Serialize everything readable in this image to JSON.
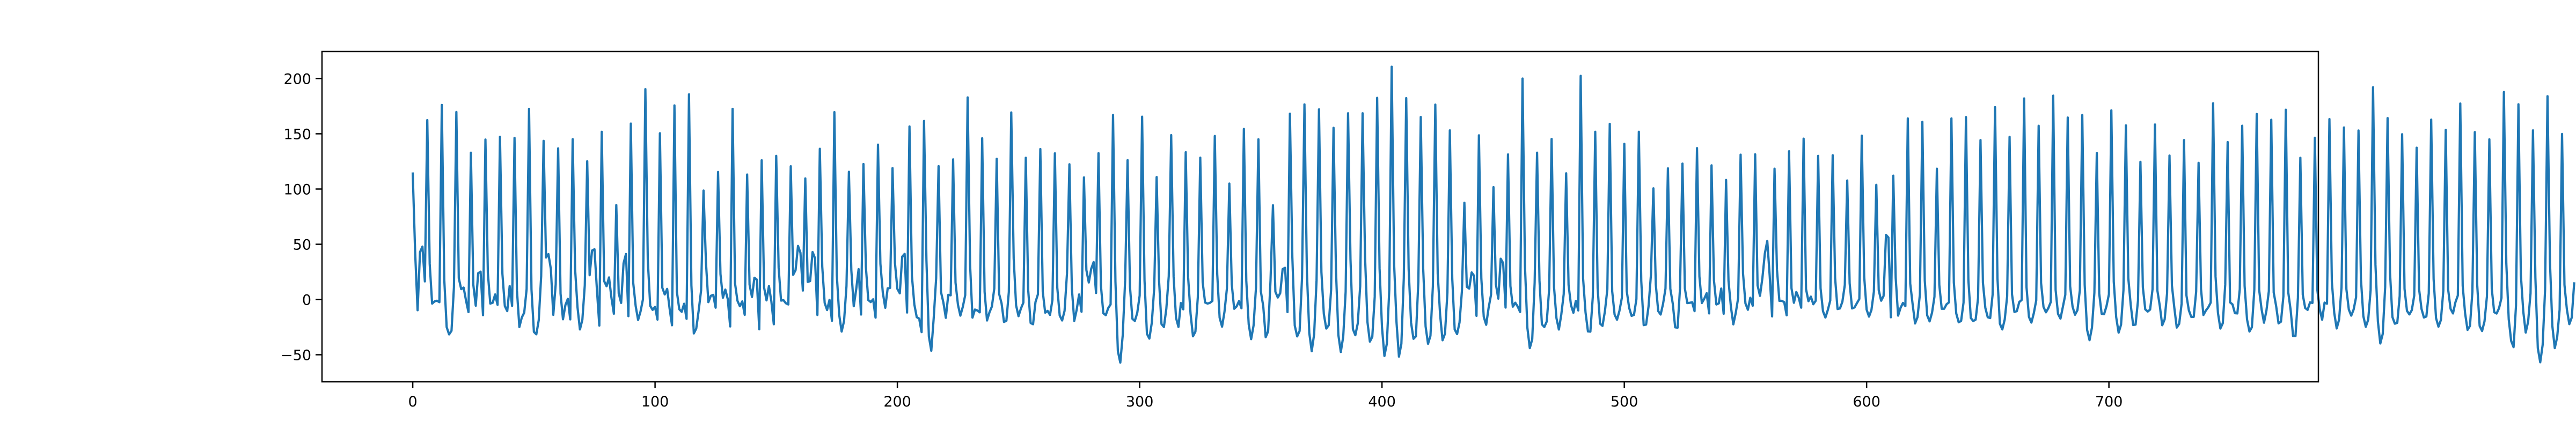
{
  "chart_data": {
    "type": "line",
    "title": "",
    "xlabel": "",
    "ylabel": "",
    "xlim": [
      -37.45,
      786.45
    ],
    "ylim": [
      -74.5,
      224.5
    ],
    "x_ticks": [
      0,
      100,
      200,
      300,
      400,
      500,
      600,
      700
    ],
    "y_ticks": [
      -50,
      0,
      50,
      100,
      150,
      200
    ],
    "grid": false,
    "legend": "none",
    "series": [
      {
        "color": "#1f77b4",
        "x_start": 0,
        "x_step": 1,
        "y": [
          114.0,
          42.1,
          -9.7,
          42.9,
          47.9,
          16.4,
          162.4,
          32.3,
          -3.7,
          -1.7,
          -1.1,
          -2.4,
          176.1,
          18.3,
          -25.0,
          -31.6,
          -28.3,
          11.1,
          169.7,
          19.3,
          9.4,
          10.8,
          -1.1,
          -11.4,
          132.9,
          13.3,
          -5.6,
          23.8,
          25.2,
          -14.2,
          144.8,
          23.9,
          -3.7,
          -2.9,
          4.6,
          -4.8,
          147.3,
          23.3,
          -5.9,
          -10.5,
          12.2,
          -5.8,
          146.3,
          8.4,
          -24.9,
          -16.3,
          -11.9,
          9.4,
          172.6,
          9.2,
          -29.3,
          -31.5,
          -18.7,
          21.2,
          143.6,
          38.0,
          41.1,
          27.6,
          -13.9,
          13.8,
          136.8,
          5.4,
          -17.9,
          -5.1,
          0.6,
          -18.0,
          145.1,
          27.5,
          -7.1,
          -27.1,
          -18.3,
          12.8,
          125.2,
          22.0,
          44.3,
          45.5,
          9.2,
          -23.6,
          151.8,
          16.6,
          12.0,
          20.0,
          1.6,
          -12.9,
          85.5,
          5.6,
          -3.1,
          32.8,
          41.2,
          -15.1,
          159.2,
          14.8,
          -5.9,
          -18.5,
          -10.9,
          0.1,
          190.4,
          35.7,
          -5.7,
          -9.4,
          -6.7,
          -18.2,
          150.5,
          10.6,
          4.6,
          9.6,
          -8.1,
          -23.3,
          175.7,
          7.0,
          -8.8,
          -11.1,
          -3.8,
          -17.5,
          185.7,
          12.8,
          -30.7,
          -26.3,
          -10.1,
          8.2,
          98.6,
          33.8,
          -2.4,
          3.3,
          4.2,
          -7.4,
          115.4,
          23.0,
          1.6,
          9.0,
          0.4,
          -24.4,
          172.6,
          14.7,
          -1.1,
          -6.1,
          -1.7,
          -13.9,
          113.1,
          13.5,
          2.3,
          19.7,
          18.0,
          -27.0,
          126.0,
          10.8,
          -0.8,
          12.2,
          -1.7,
          -22.4,
          130.0,
          28.9,
          -1.0,
          -0.6,
          -3.4,
          -4.5,
          120.6,
          22.3,
          26.7,
          48.5,
          42.4,
          8.1,
          109.6,
          15.9,
          16.7,
          43.0,
          37.5,
          -14.0,
          136.4,
          29.8,
          -3.1,
          -9.5,
          -0.3,
          -19.2,
          169.6,
          22.4,
          -13.9,
          -29.0,
          -19.5,
          12.2,
          115.6,
          26.5,
          -6.1,
          9.0,
          27.5,
          -13.6,
          122.6,
          29.6,
          -0.5,
          -2.3,
          0.2,
          -16.4,
          140.2,
          32.3,
          6.1,
          -7.5,
          10.1,
          10.5,
          118.9,
          33.1,
          9.6,
          5.6,
          38.8,
          41.3,
          -11.8,
          156.6,
          21.4,
          -4.4,
          -16.0,
          -17.3,
          -29.5,
          161.6,
          35.3,
          -33.3,
          -46.4,
          -16.8,
          19.1,
          120.7,
          6.8,
          -2.8,
          -16.6,
          4.2,
          3.8,
          126.8,
          15.2,
          -4.7,
          -14.6,
          -6.7,
          4.0,
          182.9,
          31.8,
          -16.4,
          -9.1,
          -9.9,
          -11.6,
          146.0,
          6.9,
          -19.0,
          -11.7,
          -6.4,
          10.0,
          127.4,
          5.0,
          -3.4,
          -20.3,
          -19.2,
          6.8,
          169.3,
          37.4,
          -5.3,
          -15.1,
          -8.1,
          -2.8,
          128.3,
          8.3,
          -21.3,
          -22.4,
          -2.3,
          4.7,
          136.2,
          7.2,
          -11.9,
          -10.3,
          -13.9,
          -0.3,
          132.3,
          10.6,
          -14.5,
          -19.0,
          -10.3,
          23.5,
          122.4,
          10.5,
          -19.4,
          -9.3,
          4.6,
          -11.1,
          110.5,
          26.7,
          15.4,
          27.8,
          33.9,
          5.9,
          132.4,
          12.7,
          -12.5,
          -14.2,
          -7.9,
          -4.4,
          167.0,
          16.2,
          -46.7,
          -57.1,
          -32.5,
          17.2,
          126.1,
          11.5,
          -17.5,
          -19.4,
          -12.1,
          3.6,
          165.5,
          17.3,
          -31.1,
          -35.4,
          -21.1,
          10.3,
          110.8,
          16.9,
          -22.2,
          -24.9,
          -8.4,
          21.1,
          148.8,
          20.9,
          -16.6,
          -24.8,
          -3.2,
          -8.9,
          133.3,
          19.8,
          -12.9,
          -33.3,
          -29.1,
          2.2,
          128.4,
          15.6,
          -2.7,
          -3.7,
          -3.0,
          -1.3,
          148.0,
          23.1,
          -16.5,
          -24.6,
          -11.1,
          9.9,
          104.9,
          13.8,
          -8.4,
          -6.3,
          -1.4,
          -7.9,
          154.4,
          16.9,
          -22.5,
          -35.9,
          -23.6,
          10.8,
          145.0,
          7.4,
          -6.1,
          -34.1,
          -28.9,
          17.3,
          85.3,
          7.1,
          1.8,
          5.8,
          27.5,
          28.7,
          -11.4,
          168.2,
          38.5,
          -23.6,
          -33.4,
          -28.5,
          19.6,
          176.6,
          25.2,
          -30.4,
          -46.8,
          -31.4,
          17.5,
          172.1,
          24.7,
          -13.1,
          -26.3,
          -23.4,
          8.7,
          155.4,
          26.7,
          -32.1,
          -47.5,
          -33.7,
          7.0,
          168.6,
          36.6,
          -26.8,
          -32.3,
          -21.7,
          12.1,
          168.6,
          39.0,
          -20.4,
          -38.1,
          -33.8,
          2.4,
          182.5,
          28.3,
          -25.1,
          -51.1,
          -40.1,
          8.7,
          210.7,
          32.3,
          -20.9,
          -51.7,
          -40.1,
          19.4,
          182.3,
          27.8,
          -21.0,
          -35.6,
          -33.3,
          16.0,
          165.2,
          28.2,
          -24.4,
          -40.1,
          -32.9,
          12.0,
          176.4,
          23.3,
          -14.2,
          -36.9,
          -30.9,
          6.2,
          153.1,
          18.8,
          -27.1,
          -31.3,
          -20.8,
          8.0,
          87.6,
          11.5,
          9.9,
          24.5,
          21.5,
          -14.8,
          148.6,
          19.0,
          -15.7,
          -22.9,
          -7.6,
          4.3,
          101.7,
          13.8,
          0.8,
          36.9,
          33.0,
          -7.3,
          131.3,
          12.2,
          -6.5,
          -2.9,
          -6.3,
          -11.3,
          200.0,
          30.6,
          -25.6,
          -44.0,
          -36.0,
          15.2,
          132.9,
          16.9,
          -22.5,
          -24.9,
          -19.9,
          9.6,
          145.3,
          11.2,
          -16.8,
          -27.2,
          -13.6,
          5.0,
          114.2,
          13.2,
          -5.1,
          -12.0,
          -1.3,
          -9.9,
          202.4,
          18.9,
          -11.6,
          -28.9,
          -29.1,
          2.4,
          151.8,
          10.3,
          -21.9,
          -23.9,
          -10.7,
          9.2,
          159.0,
          7.5,
          -13.7,
          -18.3,
          -10.2,
          1.6,
          140.9,
          7.8,
          -7.5,
          -14.8,
          -13.9,
          0.4,
          151.8,
          16.8,
          -23.2,
          -22.7,
          -6.4,
          22.5,
          100.6,
          13.5,
          -10.5,
          -13.6,
          -3.9,
          9.9,
          118.7,
          9.7,
          -3.7,
          -25.2,
          -25.5,
          10.4,
          123.0,
          10.0,
          -3.2,
          -3.0,
          -2.5,
          -10.5,
          137.0,
          20.9,
          -3.2,
          0.7,
          5.7,
          -12.6,
          121.4,
          17.3,
          -4.5,
          -3.5,
          9.9,
          -12.9,
          108.2,
          17.1,
          -6.7,
          -22.5,
          -12.1,
          1.5,
          131.1,
          23.5,
          -3.6,
          -9.3,
          1.6,
          -5.6,
          131.4,
          12.8,
          3.3,
          19.6,
          41.6,
          53.0,
          21.7,
          -15.3,
          118.4,
          27.2,
          -1.2,
          -1.2,
          -2.4,
          -14.3,
          134.2,
          10.2,
          -3.0,
          6.8,
          1.6,
          -7.4,
          145.6,
          9.4,
          -1.5,
          2.6,
          -4.3,
          -1.1,
          130.0,
          10.2,
          -10.6,
          -16.3,
          -9.4,
          -0.9,
          130.6,
          19.4,
          -8.6,
          -8.1,
          -2.0,
          13.1,
          107.7,
          14.8,
          -8.1,
          -7.2,
          -3.3,
          0.5,
          148.3,
          20.6,
          -9.1,
          -15.5,
          -9.4,
          7.1,
          103.8,
          8.5,
          -1.1,
          3.2,
          58.5,
          56.1,
          -16.1,
          112.1,
          19.7,
          -14.6,
          -7.6,
          -3.1,
          -6.0,
          163.9,
          14.4,
          -4.4,
          -21.7,
          -16.0,
          4.7,
          160.8,
          17.1,
          -14.3,
          -19.8,
          -11.9,
          2.5,
          118.4,
          13.2,
          -8.4,
          -8.4,
          -4.3,
          -2.6,
          163.9,
          15.3,
          -12.7,
          -20.6,
          -19.4,
          -2.8,
          165.1,
          17.7,
          -16.7,
          -19.5,
          -18.2,
          1.4,
          144.3,
          15.3,
          -7.6,
          -16.1,
          -16.8,
          4.4,
          174.1,
          19.4,
          -21.9,
          -27.1,
          -18.1,
          2.9,
          147.2,
          4.8,
          -11.3,
          -10.5,
          -2.3,
          -0.4,
          182.0,
          10.9,
          -15.8,
          -20.9,
          -12.4,
          -0.8,
          157.2,
          14.9,
          -6.7,
          -11.6,
          -7.8,
          -2.3,
          184.5,
          8.6,
          -13.0,
          -17.3,
          -6.6,
          4.3,
          164.7,
          12.0,
          -6.5,
          -13.8,
          -9.7,
          8.3,
          167.0,
          13.2,
          -27.5,
          -36.8,
          -25.4,
          6.2,
          132.6,
          5.3,
          -12.9,
          -13.3,
          -6.0,
          4.7,
          171.2,
          16.1,
          -16.0,
          -30.0,
          -22.9,
          8.6,
          157.6,
          19.3,
          -4.9,
          -23.1,
          -22.7,
          -1.0,
          124.6,
          11.2,
          -8.9,
          -10.9,
          -9.1,
          9.3,
          158.4,
          8.1,
          -5.8,
          -23.3,
          -18.0,
          5.7,
          130.3,
          12.7,
          -7.7,
          -25.4,
          -22.0,
          -3.8,
          144.3,
          3.6,
          -9.9,
          -15.8,
          -15.7,
          7.1,
          123.7,
          9.5,
          -14.0,
          -10.0,
          -7.1,
          -2.8,
          177.6,
          20.9,
          -12.2,
          -26.3,
          -21.4,
          13.5,
          142.5,
          -2.6,
          -4.4,
          -12.4,
          -12.6,
          9.3,
          157.3,
          12.3,
          -18.0,
          -29.0,
          -25.1,
          8.8,
          167.9,
          8.6,
          -8.8,
          -21.0,
          -10.1,
          7.5,
          162.7,
          6.4,
          -5.8,
          -21.6,
          -20.1,
          2.8,
          171.8,
          6.6,
          -9.6,
          -33.0,
          -33.0,
          1.6,
          128.3,
          4.4,
          -7.7,
          -9.4,
          -2.6,
          -3.1,
          146.4,
          8.8,
          -8.8,
          -18.3,
          -2.8,
          -3.8,
          163.3,
          16.1,
          -12.3,
          -26.2,
          -18.1,
          11.2,
          155.7,
          9.4,
          -9.0,
          -14.6,
          -9.0,
          2.1,
          153.0,
          18.6,
          -15.1,
          -24.7,
          -18.3,
          8.4,
          192.1,
          31.4,
          -19.8,
          -39.8,
          -31.2,
          11.2,
          164.2,
          24.4,
          -15.9,
          -21.9,
          -21.1,
          3.2,
          149.6,
          9.6,
          -10.2,
          -13.5,
          -9.6,
          3.6,
          137.4,
          9.4,
          -8.5,
          -16.3,
          -15.4,
          5.6,
          162.8,
          18.5,
          -16.8,
          -24.6,
          -18.6,
          7.9,
          153.5,
          9.0,
          -8.5,
          -12.6,
          -2.5,
          3.7,
          177.4,
          12.4,
          -12.6,
          -27.5,
          -23.9,
          6.9,
          151.5,
          12.9,
          -24.0,
          -28.5,
          -19.8,
          2.8,
          145.0,
          9.6,
          -11.5,
          -12.7,
          -7.9,
          1.4,
          187.8,
          32.7,
          -17.9,
          -37.5,
          -43.1,
          -5.5,
          176.7,
          22.4,
          -10.8,
          -29.9,
          -20.1,
          5.6,
          153.1,
          19.7,
          -44.0,
          -56.8,
          -41.1,
          8.8,
          184.0,
          34.6,
          -24.0,
          -44.0,
          -33.9,
          -9.2,
          149.8,
          13.2,
          -9.0,
          -22.3,
          -16.4,
          14.6
        ]
      }
    ]
  }
}
